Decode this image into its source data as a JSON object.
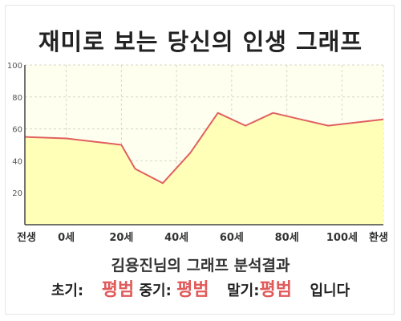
{
  "title": "재미로 보는 당신의 인생 그래프",
  "subtitle": "김용진님의 그래프 분석결과",
  "results": {
    "early_label": "초기:",
    "early_value": "평범",
    "mid_label": "중기:",
    "mid_value": "평범",
    "late_label": "말기:",
    "late_value": "평범",
    "suffix": "입니다"
  },
  "colors": {
    "plot_bg": "#fffff0",
    "fill": "#ffffb8",
    "line": "#e06060",
    "accent": "#e05a5a",
    "grid": "#d8d8c8"
  },
  "chart_data": {
    "type": "area",
    "x_tick_labels": [
      "전생",
      "0세",
      "20세",
      "40세",
      "60세",
      "80세",
      "100세",
      "환생"
    ],
    "x_ticks": [
      -15,
      0,
      20,
      40,
      60,
      80,
      100,
      115
    ],
    "xlim": [
      -15,
      115
    ],
    "y_ticks": [
      20,
      40,
      60,
      80,
      100
    ],
    "ylim": [
      0,
      100
    ],
    "grid": true,
    "series": [
      {
        "x": [
          -15,
          0,
          10,
          20,
          25,
          35,
          45,
          55,
          65,
          75,
          85,
          95,
          115
        ],
        "y": [
          55,
          54,
          52,
          50,
          35,
          26,
          45,
          70,
          62,
          70,
          66,
          62,
          66
        ]
      }
    ]
  }
}
